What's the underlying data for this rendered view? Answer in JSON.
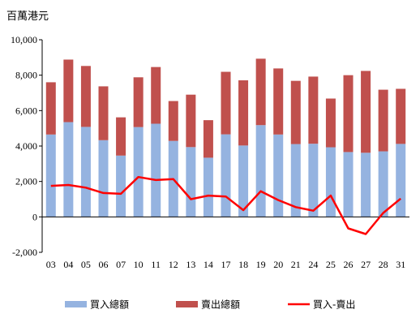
{
  "chart_data": {
    "type": "bar",
    "stacked": true,
    "unit_label": "百萬港元",
    "categories": [
      "03",
      "04",
      "05",
      "06",
      "07",
      "10",
      "11",
      "12",
      "13",
      "14",
      "17",
      "18",
      "19",
      "20",
      "21",
      "24",
      "25",
      "26",
      "27",
      "28",
      "31"
    ],
    "series": [
      {
        "name": "買入總額",
        "type": "bar",
        "color": "#95b3e0",
        "values": [
          4650,
          5350,
          5080,
          4330,
          3460,
          5070,
          5260,
          4290,
          3940,
          3340,
          4660,
          4030,
          5180,
          4650,
          4110,
          4130,
          3930,
          3660,
          3620,
          3700,
          4120
        ]
      },
      {
        "name": "賣出總額",
        "type": "bar",
        "color": "#c0504d",
        "values": [
          2950,
          3530,
          3440,
          3040,
          2160,
          2810,
          3200,
          2250,
          2960,
          2120,
          3530,
          3680,
          3750,
          3730,
          3570,
          3790,
          2750,
          4340,
          4620,
          3480,
          3110
        ]
      },
      {
        "name": "買入-賣出",
        "type": "line",
        "color": "#ff0000",
        "values": [
          1750,
          1800,
          1650,
          1350,
          1300,
          2250,
          2080,
          2130,
          1000,
          1200,
          1150,
          380,
          1450,
          950,
          550,
          350,
          1200,
          -650,
          -970,
          220,
          1030
        ]
      }
    ],
    "ylim": [
      -2000,
      10000
    ],
    "yticks": [
      -2000,
      0,
      2000,
      4000,
      6000,
      8000,
      10000
    ],
    "ytick_labels": [
      "-2,000",
      "0",
      "2,000",
      "4,000",
      "6,000",
      "8,000",
      "10,000"
    ],
    "legend_position": "bottom",
    "grid": false
  }
}
